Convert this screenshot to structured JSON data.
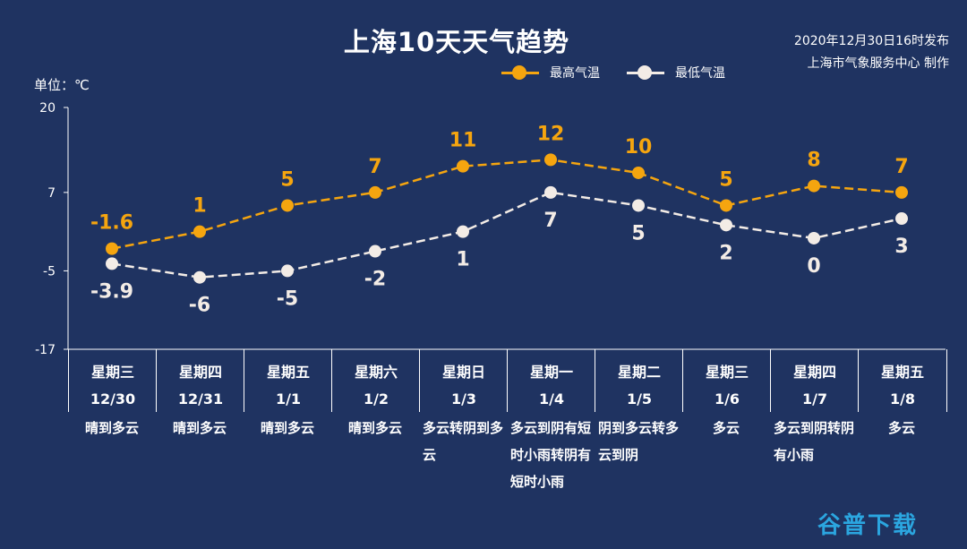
{
  "title": "上海10天天气趋势",
  "publish": {
    "line1": "2020年12月30日16时发布",
    "line2": "上海市气象服务中心 制作"
  },
  "unit_label": "单位：℃",
  "colors": {
    "high": "#f5a50f",
    "low": "#f3ece6",
    "background": "#1f3361"
  },
  "watermark": "谷普下载",
  "chart_data": {
    "type": "line",
    "ylim": [
      -17,
      20
    ],
    "yticks": [
      "20",
      "7",
      "-5",
      "-17"
    ],
    "categories": [
      "12/30",
      "12/31",
      "1/1",
      "1/2",
      "1/3",
      "1/4",
      "1/5",
      "1/6",
      "1/7",
      "1/8"
    ],
    "series": [
      {
        "name": "最高气温",
        "values": [
          -1.6,
          1,
          5,
          7,
          11,
          12,
          10,
          5,
          8,
          7
        ],
        "labels": [
          "-1.6",
          "1",
          "5",
          "7",
          "11",
          "12",
          "10",
          "5",
          "8",
          "7"
        ]
      },
      {
        "name": "最低气温",
        "values": [
          -3.9,
          -6,
          -5,
          -2,
          1,
          7,
          5,
          2,
          0,
          3
        ],
        "labels": [
          "-3.9",
          "-6",
          "-5",
          "-2",
          "1",
          "7",
          "5",
          "2",
          "0",
          "3"
        ]
      }
    ]
  },
  "days": [
    {
      "weekday": "星期三",
      "date": "12/30",
      "weather": "晴到多云"
    },
    {
      "weekday": "星期四",
      "date": "12/31",
      "weather": "晴到多云"
    },
    {
      "weekday": "星期五",
      "date": "1/1",
      "weather": "晴到多云"
    },
    {
      "weekday": "星期六",
      "date": "1/2",
      "weather": "晴到多云"
    },
    {
      "weekday": "星期日",
      "date": "1/3",
      "weather": "多云转阴到多云"
    },
    {
      "weekday": "星期一",
      "date": "1/4",
      "weather": "多云到阴有短时小雨转阴有短时小雨"
    },
    {
      "weekday": "星期二",
      "date": "1/5",
      "weather": "阴到多云转多云到阴"
    },
    {
      "weekday": "星期三",
      "date": "1/6",
      "weather": "多云"
    },
    {
      "weekday": "星期四",
      "date": "1/7",
      "weather": "多云到阴转阴有小雨"
    },
    {
      "weekday": "星期五",
      "date": "1/8",
      "weather": "多云"
    }
  ]
}
